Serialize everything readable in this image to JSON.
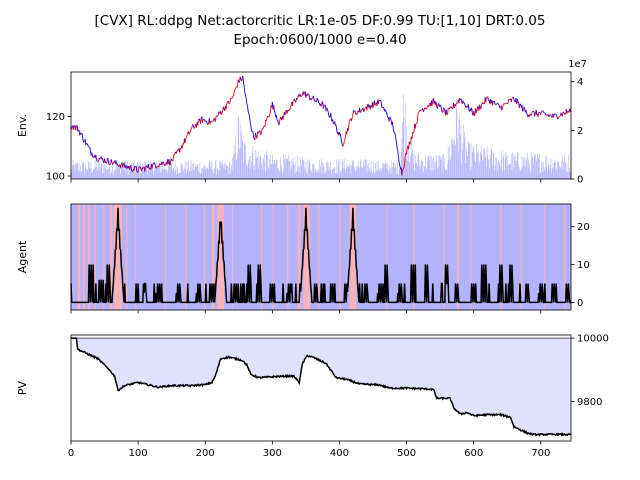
{
  "title_line1": "[CVX] RL:ddpg Net:actorcritic LR:1e-05 DF:0.99 TU:[1,10] DRT:0.05",
  "title_line2": "Epoch:0600/1000 e=0.40",
  "colors": {
    "price_up": "#ff0000",
    "price_down": "#0000ff",
    "volume": "#b3b3ff",
    "agent_bg_a": "#b3b3ff",
    "agent_bg_b": "#ffb3b3",
    "agent_line": "#000000",
    "pv_line": "#000000",
    "pv_fill": "#e0e0ff",
    "pv_base": "#808080"
  },
  "chart_data": [
    {
      "type": "line",
      "panel": "env",
      "ylabel": "Env.",
      "xlim": [
        0,
        745
      ],
      "ylim": [
        99,
        135
      ],
      "yticks": [
        100,
        120
      ],
      "y2_label": "1e7",
      "y2lim": [
        0,
        4.4
      ],
      "y2ticks": [
        0,
        2,
        4
      ],
      "price_anchors": [
        [
          0,
          117
        ],
        [
          10,
          116
        ],
        [
          20,
          112
        ],
        [
          30,
          108
        ],
        [
          40,
          106
        ],
        [
          55,
          105
        ],
        [
          70,
          104
        ],
        [
          85,
          103
        ],
        [
          100,
          102
        ],
        [
          115,
          103
        ],
        [
          130,
          104
        ],
        [
          150,
          105
        ],
        [
          165,
          110
        ],
        [
          180,
          116
        ],
        [
          195,
          119
        ],
        [
          210,
          118
        ],
        [
          225,
          122
        ],
        [
          240,
          126
        ],
        [
          250,
          132
        ],
        [
          256,
          133
        ],
        [
          262,
          124
        ],
        [
          272,
          113
        ],
        [
          285,
          115
        ],
        [
          300,
          124
        ],
        [
          310,
          118
        ],
        [
          322,
          122
        ],
        [
          345,
          128
        ],
        [
          360,
          126
        ],
        [
          375,
          124
        ],
        [
          390,
          119
        ],
        [
          405,
          111
        ],
        [
          420,
          121
        ],
        [
          440,
          123
        ],
        [
          460,
          125
        ],
        [
          480,
          117
        ],
        [
          487,
          108
        ],
        [
          493,
          101
        ],
        [
          500,
          108
        ],
        [
          520,
          122
        ],
        [
          540,
          125
        ],
        [
          560,
          121
        ],
        [
          580,
          126
        ],
        [
          600,
          121
        ],
        [
          620,
          126
        ],
        [
          640,
          123
        ],
        [
          660,
          126
        ],
        [
          680,
          121
        ],
        [
          700,
          121
        ],
        [
          720,
          120
        ],
        [
          745,
          122
        ]
      ],
      "volume_anchors": [
        [
          0,
          0.6
        ],
        [
          60,
          0.6
        ],
        [
          240,
          0.6
        ],
        [
          250,
          2.3
        ],
        [
          258,
          1.3
        ],
        [
          300,
          0.8
        ],
        [
          350,
          0.7
        ],
        [
          490,
          0.6
        ],
        [
          495,
          3.2
        ],
        [
          510,
          0.9
        ],
        [
          560,
          0.8
        ],
        [
          575,
          2.8
        ],
        [
          590,
          1.2
        ],
        [
          650,
          0.9
        ],
        [
          745,
          0.8
        ]
      ]
    },
    {
      "type": "line",
      "panel": "agent",
      "ylabel": "Agent",
      "xlim": [
        0,
        745
      ],
      "ylim": [
        -2,
        26
      ],
      "y2ticks": [
        0,
        10,
        20
      ],
      "peaks": [
        [
          70,
          25
        ],
        [
          223,
          24
        ],
        [
          350,
          25
        ],
        [
          420,
          25
        ]
      ],
      "medium": [
        [
          30,
          10
        ],
        [
          45,
          6
        ],
        [
          55,
          10
        ],
        [
          110,
          5
        ],
        [
          130,
          5
        ],
        [
          160,
          5
        ],
        [
          190,
          5
        ],
        [
          210,
          5
        ],
        [
          245,
          5
        ],
        [
          265,
          10
        ],
        [
          280,
          10
        ],
        [
          300,
          5
        ],
        [
          325,
          5
        ],
        [
          365,
          5
        ],
        [
          390,
          5
        ],
        [
          410,
          5
        ],
        [
          440,
          5
        ],
        [
          460,
          5
        ],
        [
          470,
          10
        ],
        [
          490,
          5
        ],
        [
          510,
          10
        ],
        [
          530,
          10
        ],
        [
          560,
          10
        ],
        [
          575,
          5
        ],
        [
          600,
          5
        ],
        [
          615,
          10
        ],
        [
          640,
          10
        ],
        [
          655,
          10
        ],
        [
          680,
          5
        ],
        [
          700,
          5
        ],
        [
          720,
          5
        ],
        [
          740,
          5
        ]
      ]
    },
    {
      "type": "area",
      "panel": "pv",
      "ylabel": "PV",
      "xlim": [
        0,
        745
      ],
      "ylim": [
        9675,
        10010
      ],
      "y2ticks": [
        9800,
        10000
      ],
      "baseline": 10000,
      "pv_anchors": [
        [
          0,
          10000
        ],
        [
          8,
          10000
        ],
        [
          10,
          9965
        ],
        [
          25,
          9950
        ],
        [
          40,
          9935
        ],
        [
          55,
          9905
        ],
        [
          65,
          9880
        ],
        [
          70,
          9835
        ],
        [
          80,
          9850
        ],
        [
          100,
          9860
        ],
        [
          130,
          9845
        ],
        [
          150,
          9850
        ],
        [
          180,
          9850
        ],
        [
          200,
          9853
        ],
        [
          210,
          9860
        ],
        [
          215,
          9880
        ],
        [
          223,
          9935
        ],
        [
          235,
          9940
        ],
        [
          255,
          9930
        ],
        [
          262,
          9915
        ],
        [
          268,
          9885
        ],
        [
          280,
          9875
        ],
        [
          300,
          9878
        ],
        [
          320,
          9880
        ],
        [
          332,
          9880
        ],
        [
          338,
          9865
        ],
        [
          340,
          9860
        ],
        [
          345,
          9920
        ],
        [
          352,
          9945
        ],
        [
          360,
          9940
        ],
        [
          380,
          9920
        ],
        [
          395,
          9875
        ],
        [
          410,
          9870
        ],
        [
          430,
          9855
        ],
        [
          450,
          9853
        ],
        [
          460,
          9852
        ],
        [
          475,
          9842
        ],
        [
          500,
          9842
        ],
        [
          525,
          9840
        ],
        [
          540,
          9838
        ],
        [
          545,
          9810
        ],
        [
          565,
          9810
        ],
        [
          570,
          9780
        ],
        [
          580,
          9760
        ],
        [
          590,
          9765
        ],
        [
          600,
          9755
        ],
        [
          620,
          9758
        ],
        [
          640,
          9758
        ],
        [
          655,
          9750
        ],
        [
          660,
          9720
        ],
        [
          670,
          9710
        ],
        [
          680,
          9700
        ],
        [
          690,
          9695
        ],
        [
          720,
          9696
        ],
        [
          745,
          9695
        ]
      ]
    }
  ],
  "x_axis": {
    "ticks": [
      0,
      100,
      200,
      300,
      400,
      500,
      600,
      700
    ]
  }
}
